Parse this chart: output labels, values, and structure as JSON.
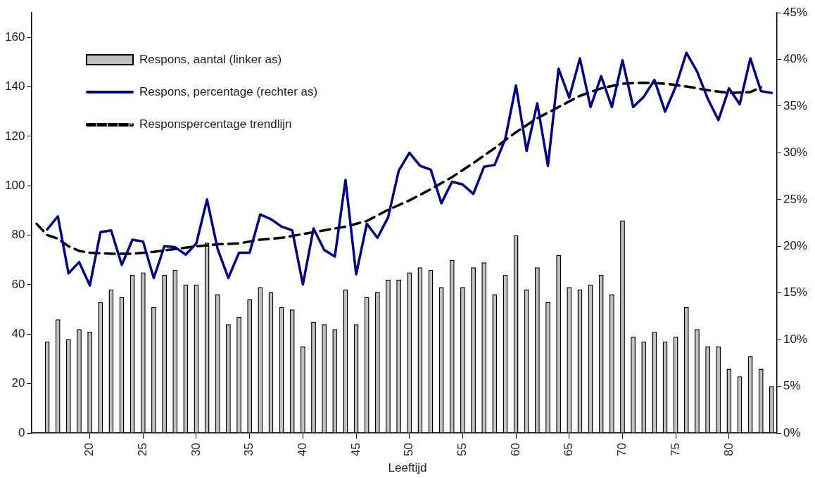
{
  "chart_data": {
    "type": "bar",
    "xlabel": "Leeftijd",
    "legend": "top left",
    "marker": "none",
    "xlim": [
      14.5,
      84.5
    ],
    "xticks": [
      20,
      25,
      30,
      35,
      40,
      45,
      50,
      55,
      60,
      65,
      70,
      75,
      80
    ],
    "ylim": [
      0,
      170
    ],
    "yticks": [
      0,
      20,
      40,
      60,
      80,
      100,
      120,
      140,
      160
    ],
    "y2lim": [
      0,
      45
    ],
    "y2ticks": [
      {
        "value": 0,
        "label": "0%"
      },
      {
        "value": 5,
        "label": "5%"
      },
      {
        "value": 10,
        "label": "10%"
      },
      {
        "value": 15,
        "label": "15%"
      },
      {
        "value": 20,
        "label": "20%"
      },
      {
        "value": 25,
        "label": "25%"
      },
      {
        "value": 30,
        "label": "30%"
      },
      {
        "value": 35,
        "label": "35%"
      },
      {
        "value": 40,
        "label": "40%"
      },
      {
        "value": 45,
        "label": "45%"
      }
    ],
    "series": [
      {
        "name": "Respons, aantal (linker as)",
        "color": "#c0c0c0",
        "x": [
          16,
          17,
          18,
          19,
          20,
          21,
          22,
          23,
          24,
          25,
          26,
          27,
          28,
          29,
          30,
          31,
          32,
          33,
          34,
          35,
          36,
          37,
          38,
          39,
          40,
          41,
          42,
          43,
          44,
          45,
          46,
          47,
          48,
          49,
          50,
          51,
          52,
          53,
          54,
          55,
          56,
          57,
          58,
          59,
          60,
          61,
          62,
          63,
          64,
          65,
          66,
          67,
          68,
          69,
          70,
          71,
          72,
          73,
          74,
          75,
          76,
          77,
          78,
          79,
          80,
          81,
          82,
          83,
          84
        ],
        "values": [
          37,
          46,
          38,
          42,
          41,
          53,
          58,
          55,
          64,
          65,
          51,
          64,
          66,
          60,
          60,
          77,
          56,
          44,
          47,
          54,
          59,
          57,
          51,
          50,
          35,
          45,
          44,
          42,
          58,
          44,
          55,
          57,
          62,
          62,
          65,
          67,
          66,
          59,
          70,
          59,
          67,
          69,
          56,
          64,
          80,
          58,
          67,
          53,
          72,
          59,
          58,
          60,
          64,
          56,
          86,
          39,
          37,
          41,
          37,
          39,
          51,
          42,
          35,
          35,
          26,
          23,
          31,
          26,
          19
        ]
      },
      {
        "name": "Respons, percentage (rechter as)",
        "type": "line",
        "axis": "y2",
        "color": "#000080",
        "line_style": "solid",
        "x": [
          16,
          17,
          18,
          19,
          20,
          21,
          22,
          23,
          24,
          25,
          26,
          27,
          28,
          29,
          30,
          31,
          32,
          33,
          34,
          35,
          36,
          37,
          38,
          39,
          40,
          41,
          42,
          43,
          44,
          45,
          46,
          47,
          48,
          49,
          50,
          51,
          52,
          53,
          54,
          55,
          56,
          57,
          58,
          59,
          60,
          61,
          62,
          63,
          64,
          65,
          66,
          67,
          68,
          69,
          70,
          71,
          72,
          73,
          74,
          75,
          76,
          77,
          78,
          79,
          80,
          81,
          82,
          83,
          84
        ],
        "values": [
          21.8,
          23.2,
          17.1,
          18.3,
          15.8,
          21.5,
          21.7,
          18.0,
          20.7,
          20.5,
          16.6,
          20.0,
          19.9,
          19.1,
          20.3,
          25.0,
          19.7,
          16.6,
          19.3,
          19.3,
          23.4,
          22.9,
          22.1,
          21.7,
          15.9,
          21.9,
          19.6,
          18.9,
          27.1,
          17.0,
          22.4,
          20.9,
          23.1,
          28.1,
          30.0,
          28.6,
          28.2,
          24.6,
          26.9,
          26.6,
          25.6,
          28.5,
          28.7,
          31.5,
          37.2,
          30.2,
          35.3,
          28.6,
          39.0,
          35.9,
          40.1,
          34.9,
          38.2,
          34.9,
          39.9,
          34.9,
          36.0,
          37.8,
          34.4,
          37.1,
          40.7,
          38.7,
          35.8,
          33.5,
          36.9,
          35.2,
          40.1,
          36.6,
          36.4
        ]
      },
      {
        "name": "Responspercentage trendlijn",
        "type": "line",
        "axis": "y2",
        "color": "#000000",
        "line_style": "dashed",
        "x": [
          15,
          16,
          17,
          18,
          19,
          20,
          22,
          24,
          26,
          28,
          30,
          32,
          34,
          36,
          38,
          40,
          42,
          44,
          46,
          48,
          50,
          52,
          54,
          56,
          58,
          60,
          62,
          64,
          66,
          68,
          70,
          72,
          74,
          76,
          78,
          80,
          82,
          83
        ],
        "values": [
          22.4,
          21.2,
          20.8,
          20.0,
          19.5,
          19.3,
          19.2,
          19.2,
          19.4,
          19.7,
          20.0,
          20.2,
          20.3,
          20.7,
          20.9,
          21.3,
          21.7,
          22.1,
          22.7,
          23.9,
          24.9,
          26.1,
          27.4,
          28.9,
          30.5,
          32.2,
          33.7,
          34.9,
          36.1,
          36.9,
          37.4,
          37.5,
          37.4,
          37.1,
          36.7,
          36.4,
          36.5,
          37.0
        ]
      }
    ]
  }
}
